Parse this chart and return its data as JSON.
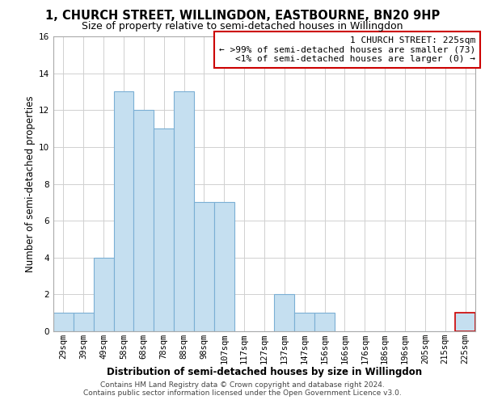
{
  "title": "1, CHURCH STREET, WILLINGDON, EASTBOURNE, BN20 9HP",
  "subtitle": "Size of property relative to semi-detached houses in Willingdon",
  "xlabel": "Distribution of semi-detached houses by size in Willingdon",
  "ylabel": "Number of semi-detached properties",
  "bin_labels": [
    "29sqm",
    "39sqm",
    "49sqm",
    "58sqm",
    "68sqm",
    "78sqm",
    "88sqm",
    "98sqm",
    "107sqm",
    "117sqm",
    "127sqm",
    "137sqm",
    "147sqm",
    "156sqm",
    "166sqm",
    "176sqm",
    "186sqm",
    "196sqm",
    "205sqm",
    "215sqm",
    "225sqm"
  ],
  "bar_heights": [
    1,
    1,
    4,
    13,
    12,
    11,
    13,
    7,
    7,
    0,
    0,
    2,
    1,
    1,
    0,
    0,
    0,
    0,
    0,
    0,
    1
  ],
  "bar_color": "#c5dff0",
  "bar_edge_color": "#7bafd4",
  "highlight_bar_index": 20,
  "highlight_bar_edge_color": "#cc0000",
  "annotation_title": "1 CHURCH STREET: 225sqm",
  "annotation_line1": "← >99% of semi-detached houses are smaller (73)",
  "annotation_line2": "<1% of semi-detached houses are larger (0) →",
  "annotation_edge_color": "#cc0000",
  "ylim": [
    0,
    16
  ],
  "yticks": [
    0,
    2,
    4,
    6,
    8,
    10,
    12,
    14,
    16
  ],
  "footer_line1": "Contains HM Land Registry data © Crown copyright and database right 2024.",
  "footer_line2": "Contains public sector information licensed under the Open Government Licence v3.0.",
  "bg_color": "#ffffff",
  "grid_color": "#d0d0d0",
  "title_fontsize": 10.5,
  "subtitle_fontsize": 9,
  "axis_label_fontsize": 8.5,
  "tick_fontsize": 7.5,
  "annotation_fontsize": 8,
  "footer_fontsize": 6.5
}
